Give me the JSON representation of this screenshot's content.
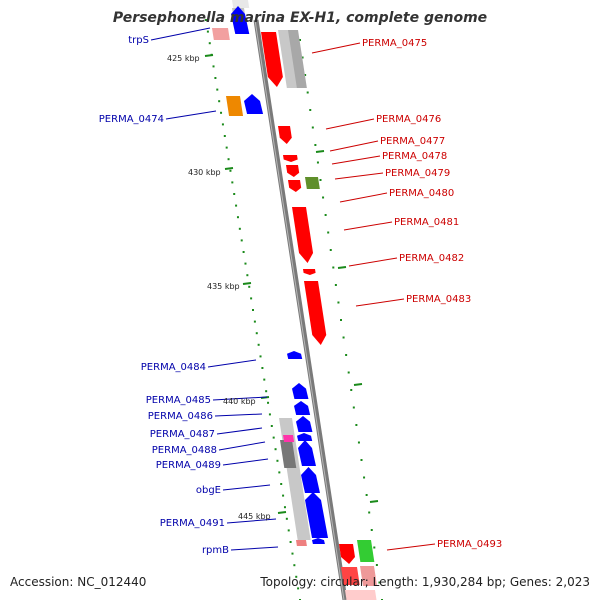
{
  "title": "Persephonella marina EX-H1, complete genome",
  "footer": {
    "accession": "Accession: NC_012440",
    "summary": "Topology: circular; Length: 1,930,284 bp; Genes: 2,023"
  },
  "colors": {
    "forward_gene": "#ff0000",
    "reverse_gene": "#0000ff",
    "forward_label": "#cc0000",
    "reverse_label": "#0000aa",
    "backbone": "#808080",
    "tick_marks": "#1a8a1a"
  },
  "scale_labels": [
    "425 kbp",
    "430 kbp",
    "435 kbp",
    "440 kbp",
    "445 kbp"
  ],
  "gene_labels": {
    "reverse_strand": [
      "trpS",
      "PERMA_0474",
      "PERMA_0484",
      "PERMA_0485",
      "PERMA_0486",
      "PERMA_0487",
      "PERMA_0488",
      "PERMA_0489",
      "obgE",
      "PERMA_0491",
      "rpmB"
    ],
    "forward_strand": [
      "PERMA_0475",
      "PERMA_0476",
      "PERMA_0477",
      "PERMA_0478",
      "PERMA_0479",
      "PERMA_0480",
      "PERMA_0481",
      "PERMA_0482",
      "PERMA_0483",
      "PERMA_0493"
    ]
  }
}
